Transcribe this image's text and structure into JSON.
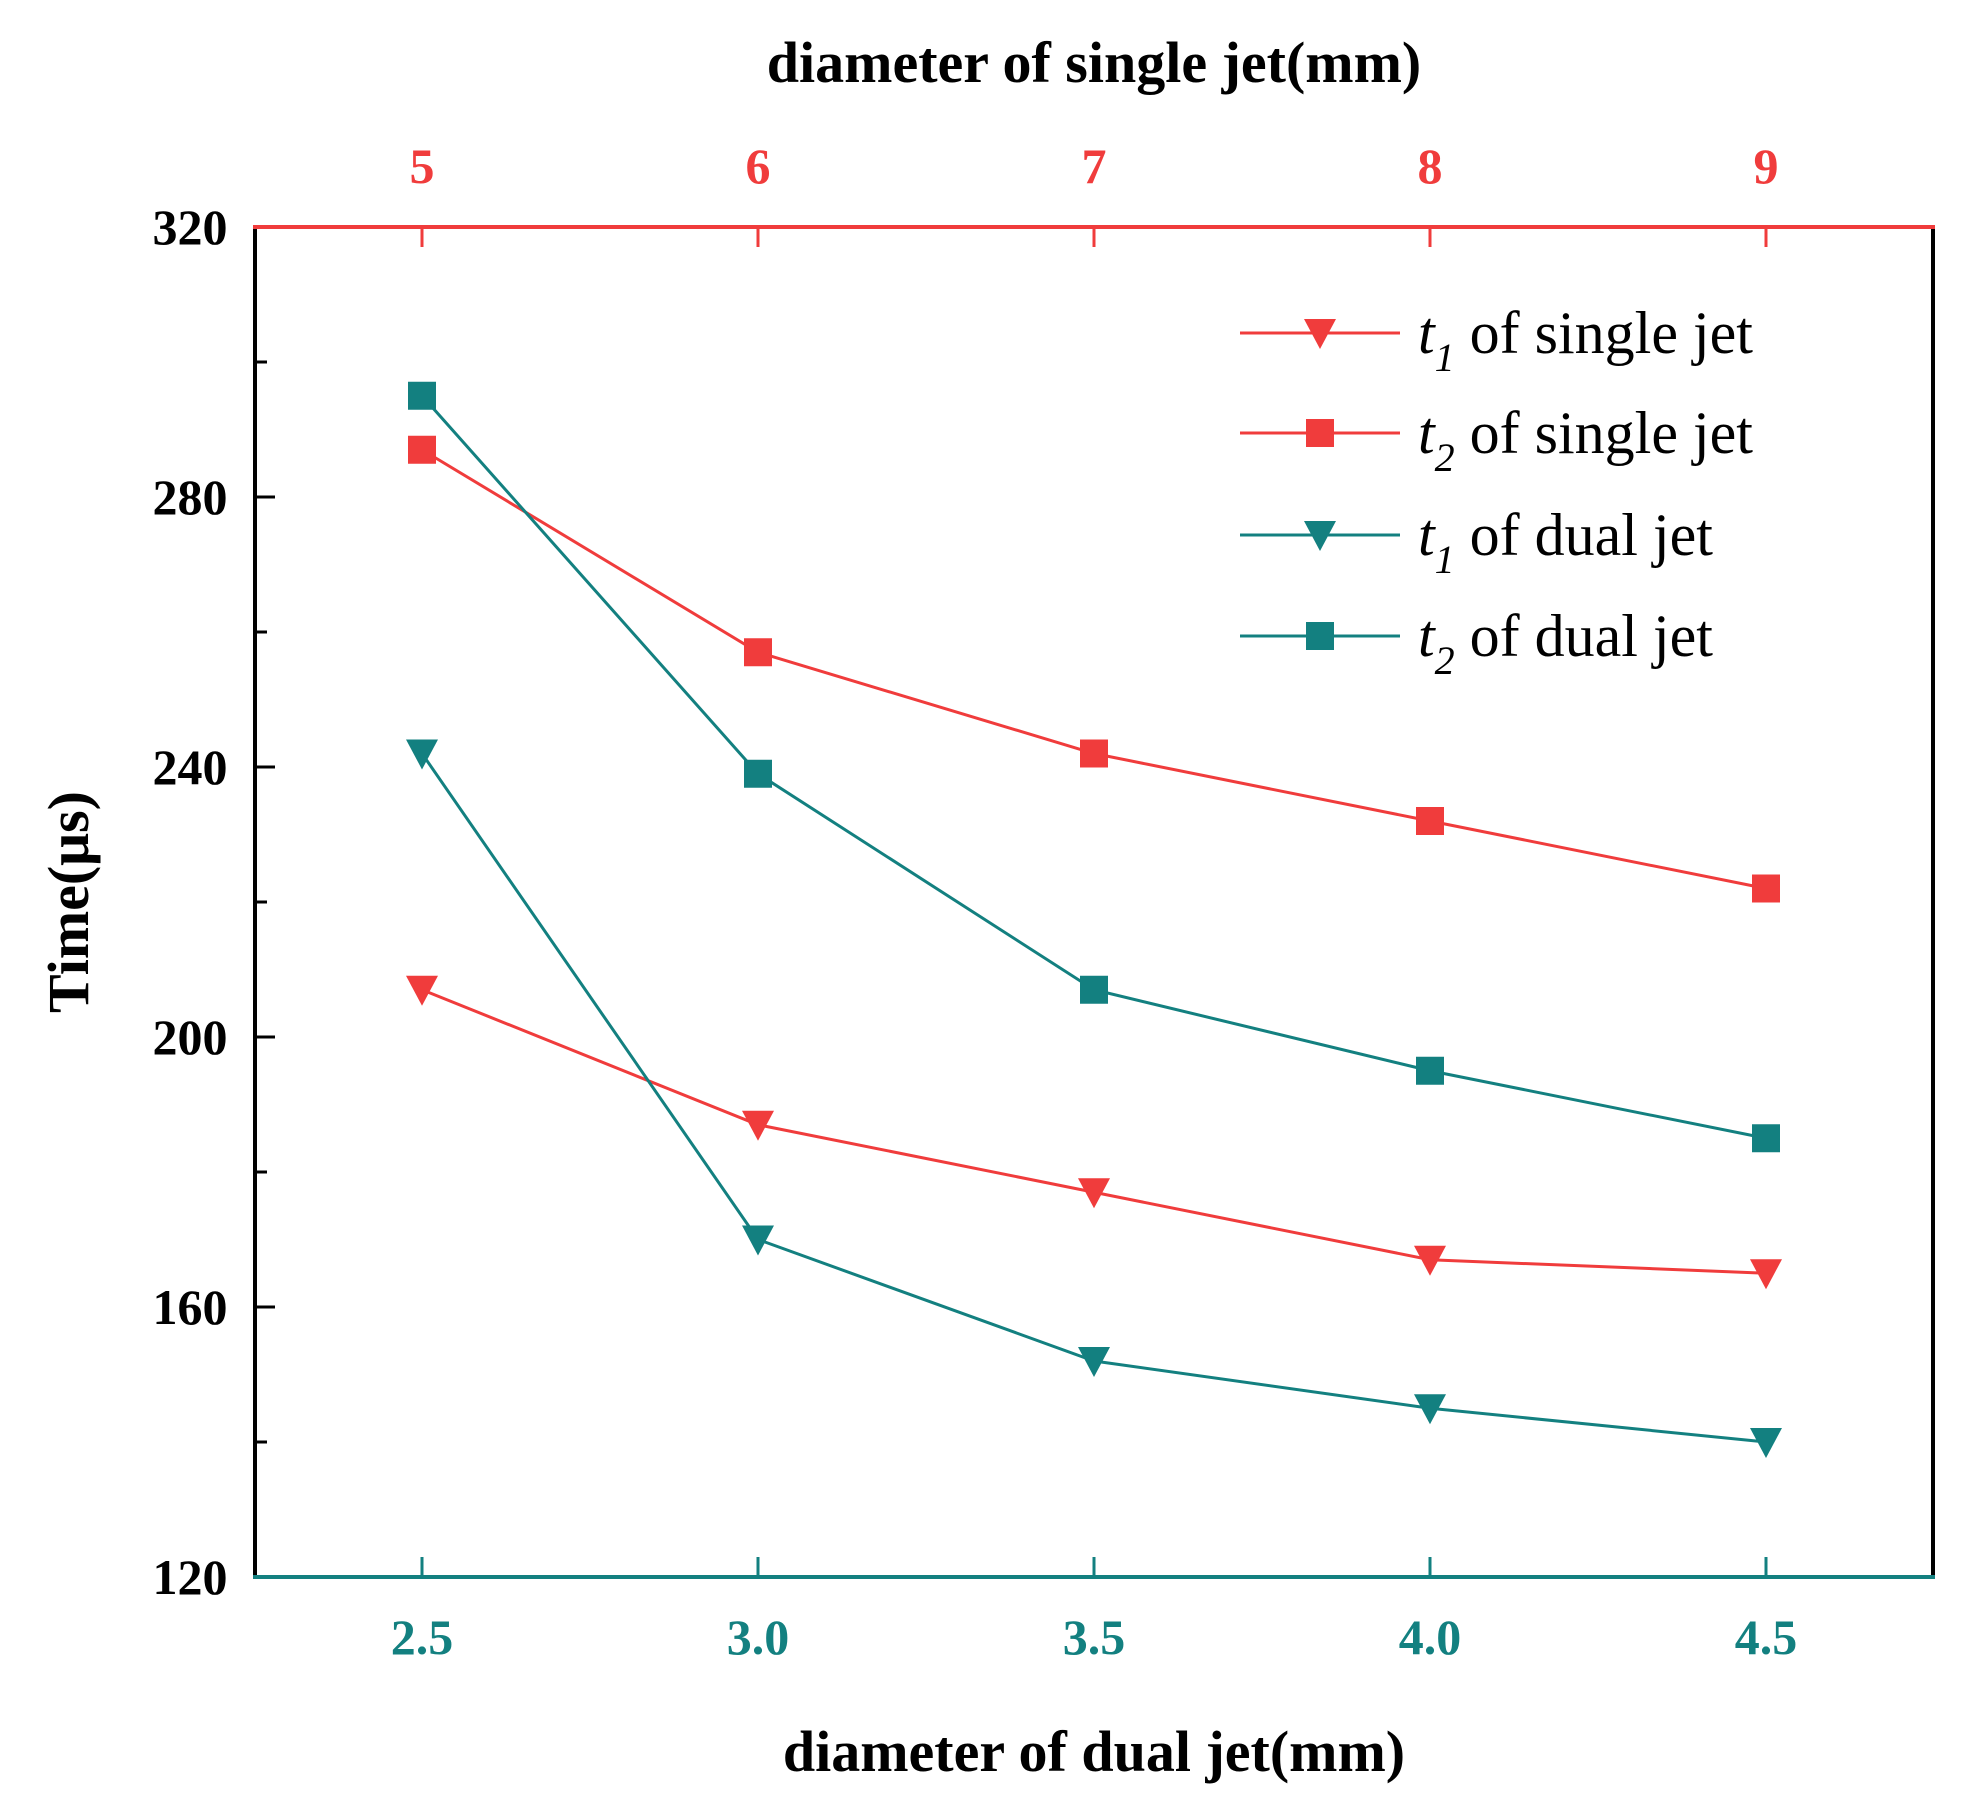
{
  "chart_data": {
    "type": "line",
    "top_axis": {
      "title": "diameter of single jet(mm)",
      "ticks": [
        "5",
        "6",
        "7",
        "8",
        "9"
      ],
      "color": "#f03c3c"
    },
    "bottom_axis": {
      "title": "diameter of dual jet(mm)",
      "ticks": [
        "2.5",
        "3.0",
        "3.5",
        "4.0",
        "4.5"
      ],
      "color": "#138080"
    },
    "y_axis": {
      "title": "Time(μs)",
      "ticks": [
        "120",
        "160",
        "200",
        "240",
        "280",
        "320"
      ],
      "ylim": [
        120,
        320
      ],
      "minor_step": 20
    },
    "x_count": 5,
    "series": [
      {
        "name": "t1 of single jet",
        "sym": "t",
        "sub": "1",
        "rest": " of single jet",
        "color": "#f03c3c",
        "marker": "triangle-down",
        "values": [
          207,
          187,
          177,
          167,
          165
        ]
      },
      {
        "name": "t2 of single jet",
        "sym": "t",
        "sub": "2",
        "rest": " of single jet",
        "color": "#f03c3c",
        "marker": "square",
        "values": [
          287,
          257,
          242,
          232,
          222
        ]
      },
      {
        "name": "t1 of dual jet",
        "sym": "t",
        "sub": "1",
        "rest": " of dual jet",
        "color": "#138080",
        "marker": "triangle-down",
        "values": [
          242,
          170,
          152,
          145,
          140
        ]
      },
      {
        "name": "t2 of dual jet",
        "sym": "t",
        "sub": "2",
        "rest": " of dual jet",
        "color": "#138080",
        "marker": "square",
        "values": [
          295,
          239,
          207,
          195,
          185
        ]
      }
    ],
    "legend_position": "top-right"
  }
}
